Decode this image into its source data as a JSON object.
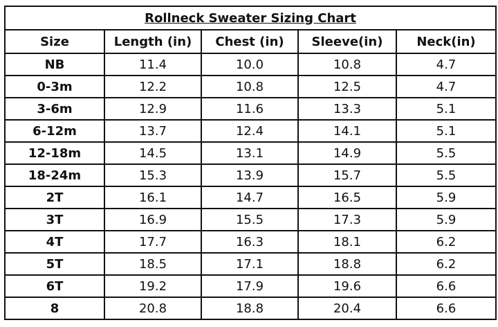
{
  "table": {
    "title": "Rollneck Sweater Sizing Chart",
    "header": [
      "Size",
      "Length (in)",
      "Chest (in)",
      "Sleeve(in)",
      "Neck(in)"
    ],
    "rows": [
      [
        "NB",
        "11.4",
        "10.0",
        "10.8",
        "4.7"
      ],
      [
        "0-3m",
        "12.2",
        "10.8",
        "12.5",
        "4.7"
      ],
      [
        "3-6m",
        "12.9",
        "11.6",
        "13.3",
        "5.1"
      ],
      [
        "6-12m",
        "13.7",
        "12.4",
        "14.1",
        "5.1"
      ],
      [
        "12-18m",
        "14.5",
        "13.1",
        "14.9",
        "5.5"
      ],
      [
        "18-24m",
        "15.3",
        "13.9",
        "15.7",
        "5.5"
      ],
      [
        "2T",
        "16.1",
        "14.7",
        "16.5",
        "5.9"
      ],
      [
        "3T",
        "16.9",
        "15.5",
        "17.3",
        "5.9"
      ],
      [
        "4T",
        "17.7",
        "16.3",
        "18.1",
        "6.2"
      ],
      [
        "5T",
        "18.5",
        "17.1",
        "18.8",
        "6.2"
      ],
      [
        "6T",
        "19.2",
        "17.9",
        "19.6",
        "6.6"
      ],
      [
        "8",
        "20.8",
        "18.8",
        "20.4",
        "6.6"
      ]
    ]
  }
}
